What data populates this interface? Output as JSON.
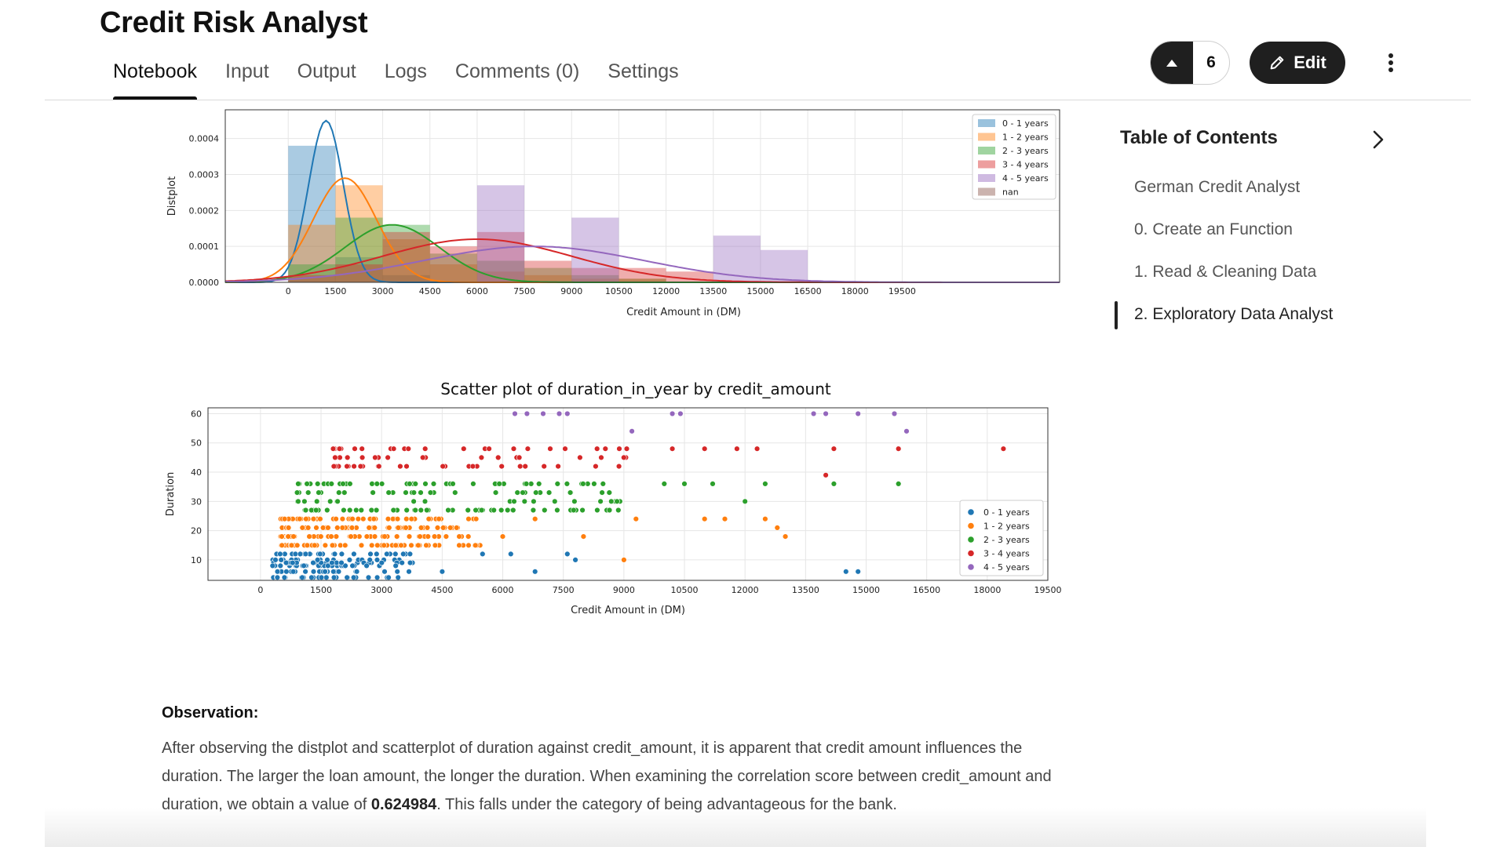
{
  "header": {
    "title": "Credit Risk Analyst",
    "tabs": [
      "Notebook",
      "Input",
      "Output",
      "Logs",
      "Comments (0)",
      "Settings"
    ],
    "active_tab": "Notebook",
    "vote_count": "6",
    "edit_label": "Edit"
  },
  "toc": {
    "title": "Table of Contents",
    "items": [
      "German Credit Analyst",
      "0. Create an Function",
      "1. Read & Cleaning Data",
      "2. Exploratory Data Analyst"
    ],
    "active_index": 3
  },
  "observation": {
    "title": "Observation:",
    "text_before": "After observing the distplot and scatterplot of duration against credit_amount, it is apparent that credit amount influences the duration. The larger the loan amount, the longer the duration. When examining the correlation score between credit_amount and duration, we obtain a value of ",
    "value": "0.624984",
    "text_after": ". This falls under the category of being advantageous for the bank."
  },
  "icons": {
    "vote": "upvote-icon",
    "edit": "pencil-icon",
    "menu": "kebab-menu-icon",
    "toc": "chevron-right-icon"
  },
  "colors": {
    "dark": "#1f1f1f",
    "blue": "#1f77b4",
    "orange": "#ff7f0e",
    "green": "#2ca02c",
    "red": "#d62728",
    "purple": "#9467bd",
    "brown": "#8c564b"
  },
  "chart_data": [
    {
      "type": "histogram",
      "title": "",
      "xlabel": "Credit Amount in (DM)",
      "ylabel": "Distplot",
      "xlim": [
        -2000,
        24500
      ],
      "ylim": [
        0,
        0.00048
      ],
      "xticks": [
        0,
        1500,
        3000,
        4500,
        6000,
        7500,
        9000,
        10500,
        12000,
        13500,
        15000,
        16500,
        18000,
        19500
      ],
      "yticks": [
        "0.0000",
        "0.0001",
        "0.0002",
        "0.0003",
        "0.0004"
      ],
      "grid": true,
      "legend_position": "top-right",
      "bins": [
        0,
        1500,
        3000,
        4500,
        6000,
        7500,
        9000,
        10500,
        12000,
        13500,
        15000,
        16500
      ],
      "series": [
        {
          "name": "0 - 1 years",
          "color": "#1f77b4",
          "hist": [
            0.00038,
            7e-05,
            2e-05,
            0,
            0,
            0,
            0,
            0,
            0,
            0,
            0
          ],
          "kde_peak_x": 1200,
          "kde_peak_y": 0.00045,
          "kde_width": 550
        },
        {
          "name": "1 - 2 years",
          "color": "#ff7f0e",
          "hist": [
            0.00016,
            0.00027,
            0.00012,
            5e-05,
            3e-05,
            2e-05,
            1e-05,
            1e-05,
            0,
            0,
            0
          ],
          "kde_peak_x": 1800,
          "kde_peak_y": 0.00029,
          "kde_width": 1000
        },
        {
          "name": "2 - 3 years",
          "color": "#2ca02c",
          "hist": [
            5e-05,
            0.00018,
            0.00016,
            8e-05,
            6e-05,
            4e-05,
            2e-05,
            1e-05,
            0,
            0,
            0
          ],
          "kde_peak_x": 3300,
          "kde_peak_y": 0.00016,
          "kde_width": 1500
        },
        {
          "name": "3 - 4 years",
          "color": "#d62728",
          "hist": [
            2e-05,
            5e-05,
            0.00014,
            0.0001,
            0.00014,
            6e-05,
            4e-05,
            4e-05,
            3e-05,
            0,
            0
          ],
          "kde_peak_x": 6000,
          "kde_peak_y": 0.00012,
          "kde_width": 3000
        },
        {
          "name": "4 - 5 years",
          "color": "#9467bd",
          "hist": [
            0,
            0,
            0,
            0,
            0.00027,
            0,
            0.00018,
            0,
            0,
            0.00013,
            9e-05
          ],
          "kde_peak_x": 7800,
          "kde_peak_y": 0.0001,
          "kde_width": 3500
        },
        {
          "name": "nan",
          "color": "#8c564b",
          "hist": [
            0,
            0,
            0,
            0,
            0,
            0,
            0,
            0,
            0,
            0,
            0
          ]
        }
      ]
    },
    {
      "type": "scatter",
      "title": "Scatter plot of duration_in_year by credit_amount",
      "xlabel": "Credit Amount in (DM)",
      "ylabel": "Duration",
      "xlim": [
        -1300,
        19500
      ],
      "ylim": [
        3,
        62
      ],
      "xticks": [
        0,
        1500,
        3000,
        4500,
        6000,
        7500,
        9000,
        10500,
        12000,
        13500,
        15000,
        16500,
        18000,
        19500
      ],
      "yticks": [
        10,
        20,
        30,
        40,
        50,
        60
      ],
      "grid": true,
      "legend_position": "lower-right",
      "series": [
        {
          "name": "0 - 1 years",
          "color": "#1f77b4",
          "x_range": [
            300,
            3900
          ],
          "y_values": [
            4,
            6,
            8,
            9,
            10,
            12
          ],
          "count": 170,
          "extra": [
            [
              4500,
              6
            ],
            [
              5500,
              12
            ],
            [
              6200,
              12
            ],
            [
              6800,
              6
            ],
            [
              7600,
              12
            ],
            [
              7800,
              10
            ],
            [
              14500,
              6
            ],
            [
              14800,
              6
            ]
          ]
        },
        {
          "name": "1 - 2 years",
          "color": "#ff7f0e",
          "x_range": [
            500,
            5500
          ],
          "y_values": [
            15,
            18,
            21,
            24
          ],
          "count": 210,
          "extra": [
            [
              6000,
              18
            ],
            [
              6800,
              24
            ],
            [
              8000,
              18
            ],
            [
              9000,
              10
            ],
            [
              9300,
              24
            ],
            [
              11000,
              24
            ],
            [
              11500,
              24
            ],
            [
              12500,
              24
            ],
            [
              12800,
              21
            ],
            [
              13000,
              18
            ]
          ]
        },
        {
          "name": "2 - 3 years",
          "color": "#2ca02c",
          "x_range": [
            900,
            9000
          ],
          "y_values": [
            27,
            30,
            33,
            36
          ],
          "count": 150,
          "extra": [
            [
              10000,
              36
            ],
            [
              10500,
              36
            ],
            [
              11200,
              36
            ],
            [
              12000,
              30
            ],
            [
              12500,
              36
            ],
            [
              14200,
              36
            ],
            [
              15800,
              36
            ]
          ]
        },
        {
          "name": "3 - 4 years",
          "color": "#d62728",
          "x_range": [
            1800,
            9200
          ],
          "y_values": [
            42,
            45,
            48
          ],
          "count": 70,
          "extra": [
            [
              10200,
              48
            ],
            [
              11000,
              48
            ],
            [
              11800,
              48
            ],
            [
              12300,
              48
            ],
            [
              14200,
              48
            ],
            [
              14000,
              39
            ],
            [
              15800,
              48
            ],
            [
              18400,
              48
            ]
          ]
        },
        {
          "name": "4 - 5 years",
          "color": "#9467bd",
          "points": [
            [
              6300,
              60
            ],
            [
              6600,
              60
            ],
            [
              7000,
              60
            ],
            [
              7400,
              60
            ],
            [
              7600,
              60
            ],
            [
              9200,
              54
            ],
            [
              10200,
              60
            ],
            [
              10400,
              60
            ],
            [
              13700,
              60
            ],
            [
              14000,
              60
            ],
            [
              14800,
              60
            ],
            [
              15700,
              60
            ],
            [
              16000,
              54
            ]
          ]
        }
      ]
    }
  ]
}
